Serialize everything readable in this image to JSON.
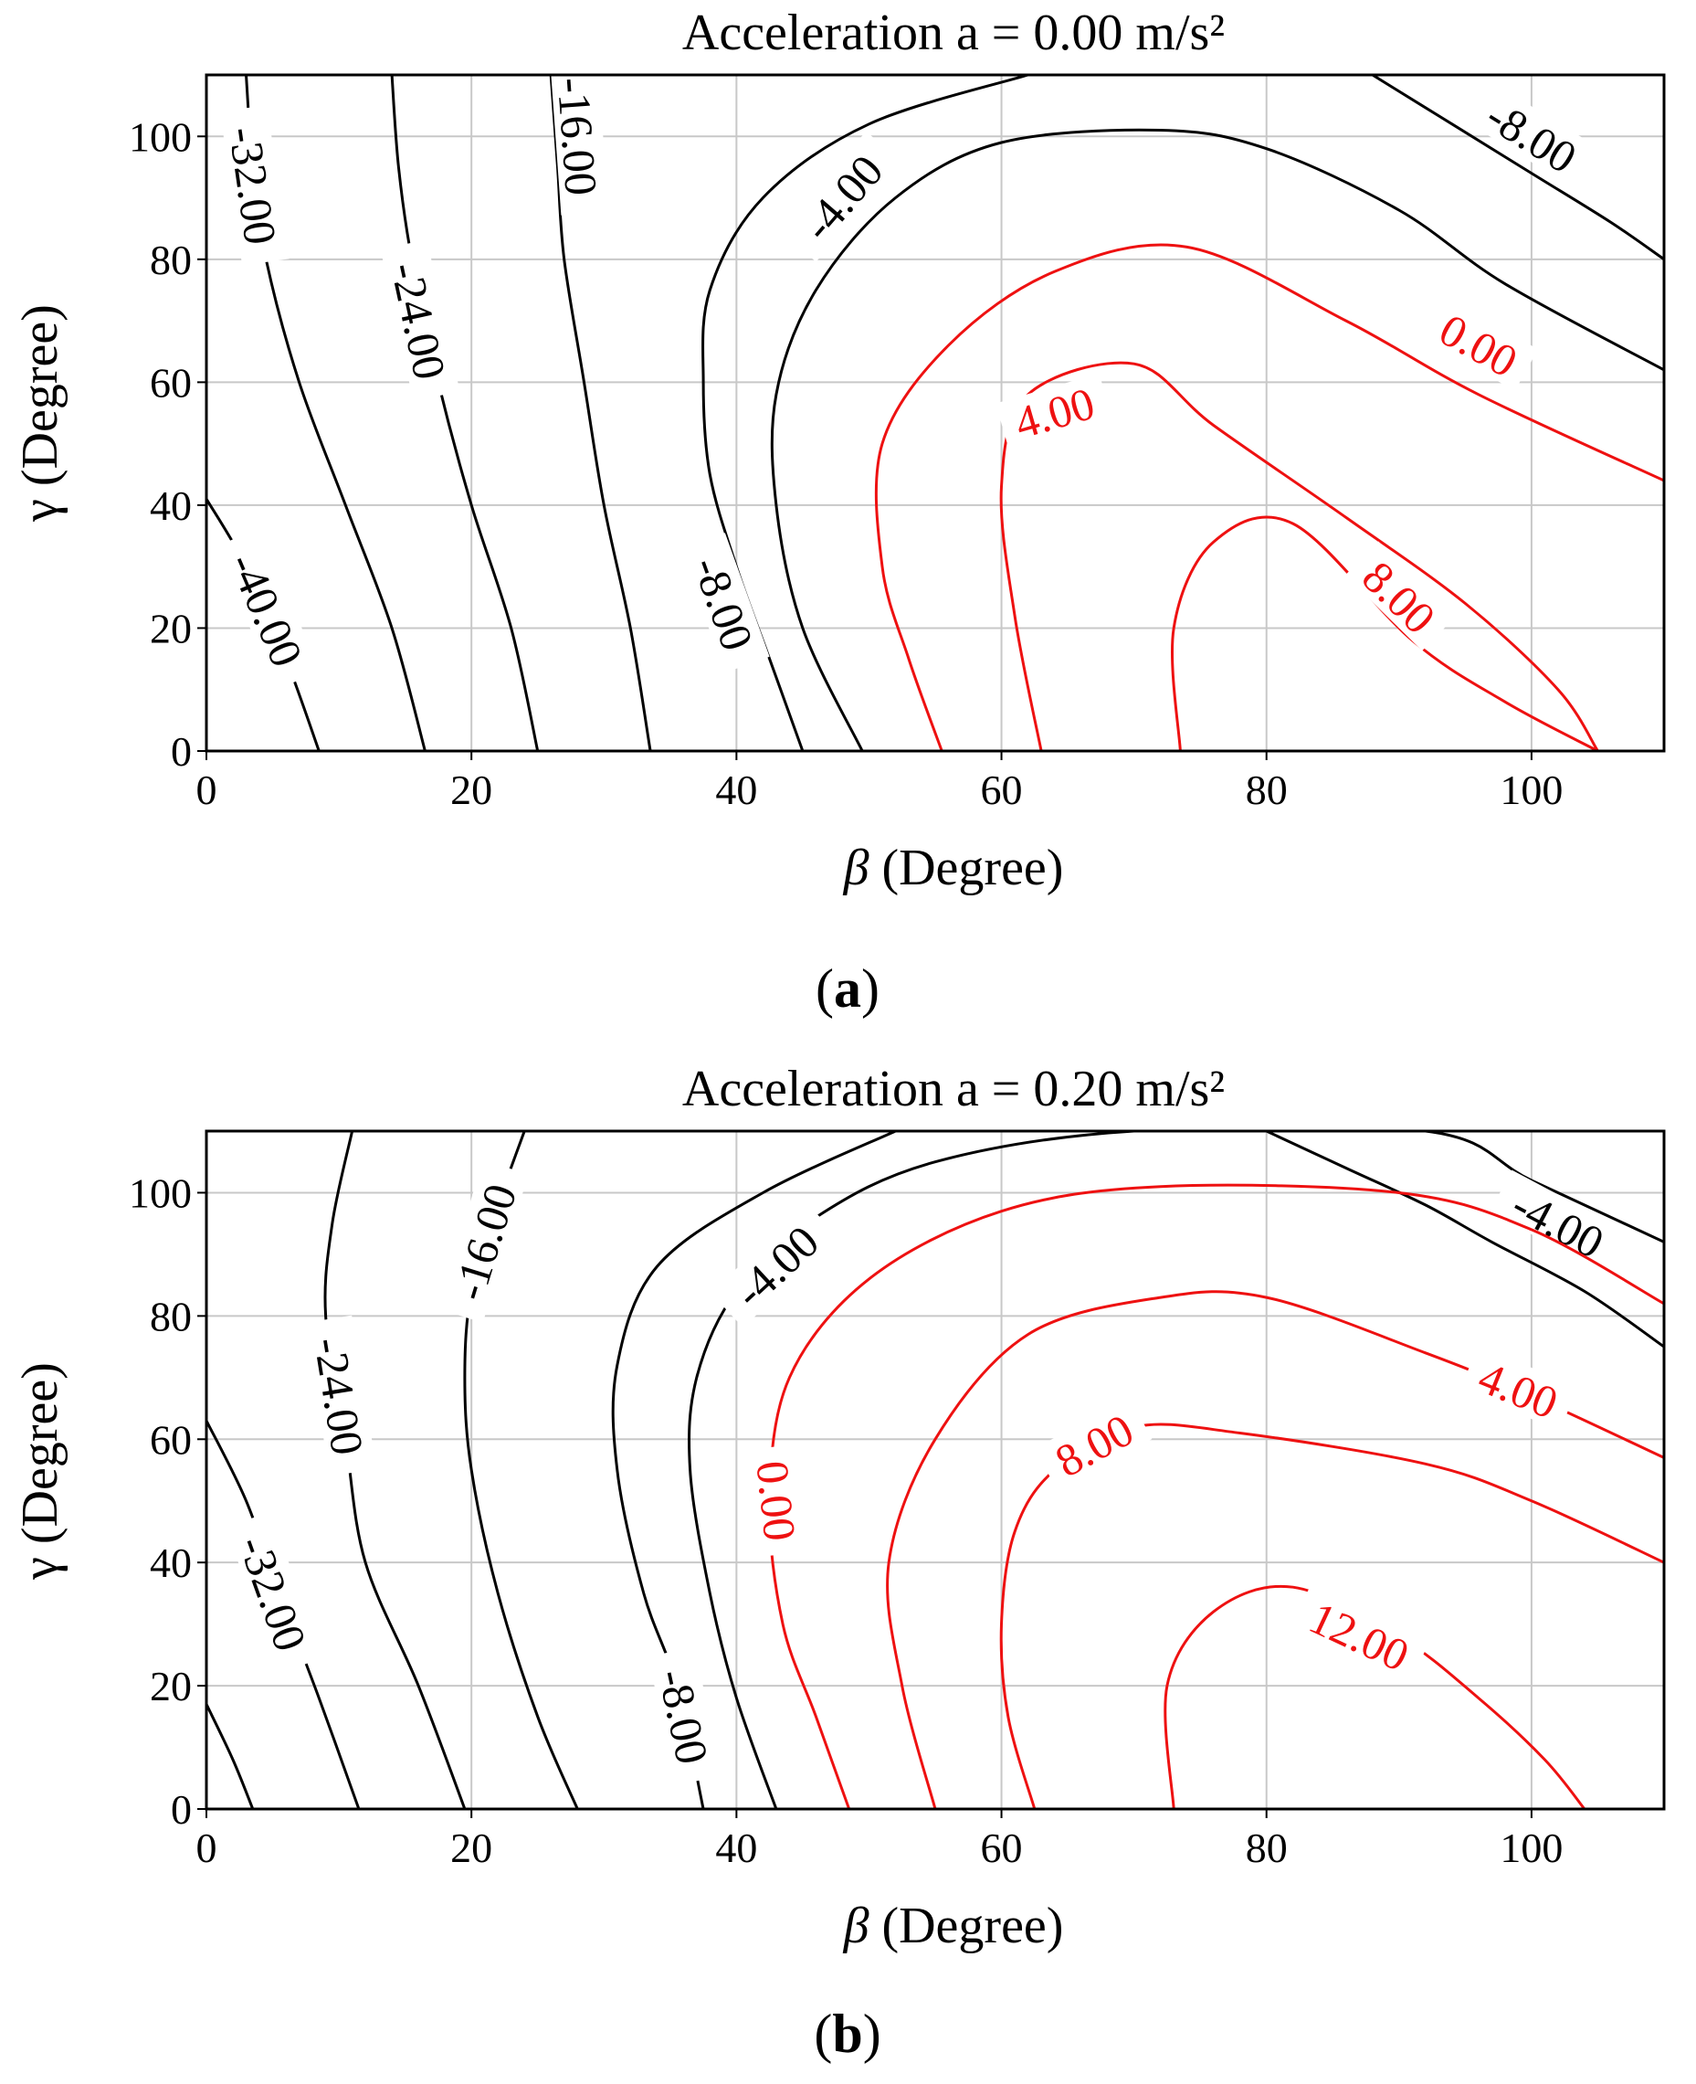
{
  "chart_data": [
    {
      "type": "contour",
      "panel": "(a)",
      "panel_letter": "a",
      "title": "Acceleration a = 0.00 m/s²",
      "xlabel": "β (Degree)",
      "xlabel_symbol": "β",
      "xlabel_unit": "(Degree)",
      "ylabel": "γ (Degree)",
      "ylabel_symbol": "γ",
      "ylabel_unit": "(Degree)",
      "xlim": [
        0,
        110
      ],
      "ylim": [
        0,
        110
      ],
      "xticks": [
        0,
        20,
        40,
        60,
        80,
        100
      ],
      "yticks": [
        0,
        20,
        40,
        60,
        80,
        100
      ],
      "grid": true,
      "positive_color": "#ee1111",
      "negative_color": "#000000",
      "levels": [
        {
          "label": "-40.00",
          "sign": "negative",
          "points": [
            [
              0,
              41
            ],
            [
              3,
              30
            ],
            [
              6,
              15
            ],
            [
              8.5,
              0
            ]
          ],
          "label_at": [
            4.5,
            23
          ]
        },
        {
          "label": "-32.00",
          "sign": "negative",
          "points": [
            [
              3,
              110
            ],
            [
              3.5,
              95
            ],
            [
              4.5,
              80
            ],
            [
              7,
              60
            ],
            [
              10.5,
              40
            ],
            [
              14,
              20
            ],
            [
              16.5,
              0
            ]
          ],
          "label_at": [
            3.5,
            92
          ]
        },
        {
          "label": "-24.00",
          "sign": "negative",
          "points": [
            [
              14,
              110
            ],
            [
              14.5,
              95
            ],
            [
              15.5,
              80
            ],
            [
              17.5,
              60
            ],
            [
              20,
              40
            ],
            [
              23,
              20
            ],
            [
              25,
              0
            ]
          ],
          "label_at": [
            16,
            70
          ]
        },
        {
          "label": "-16.00",
          "sign": "negative",
          "points": [
            [
              26,
              110
            ],
            [
              26.5,
              95
            ],
            [
              27,
              80
            ],
            [
              28.5,
              60
            ],
            [
              30,
              40
            ],
            [
              32,
              20
            ],
            [
              33.5,
              0
            ]
          ],
          "label_at": [
            28,
            100
          ]
        },
        {
          "label": "-8.00",
          "sign": "negative",
          "points": [
            [
              62,
              110
            ],
            [
              50,
              102
            ],
            [
              42,
              90
            ],
            [
              38,
              75
            ],
            [
              37.5,
              60
            ],
            [
              38,
              45
            ],
            [
              40,
              30
            ],
            [
              42.5,
              15
            ],
            [
              45,
              0
            ]
          ],
          "label_at": [
            39,
            24
          ]
        },
        {
          "label": "-4.00",
          "sign": "negative",
          "points": [
            [
              110,
              62
            ],
            [
              98,
              76
            ],
            [
              90,
              88
            ],
            [
              80,
              98
            ],
            [
              72,
              101
            ],
            [
              60,
              99
            ],
            [
              52,
              90
            ],
            [
              46,
              75
            ],
            [
              43,
              58
            ],
            [
              43,
              40
            ],
            [
              45,
              20
            ],
            [
              49.5,
              0
            ]
          ],
          "label_at": [
            48,
            90
          ]
        },
        {
          "label": "-8.00",
          "sign": "negative",
          "points": [
            [
              110,
              80
            ],
            [
              106,
              86
            ],
            [
              100,
              94
            ],
            [
              94,
              102
            ],
            [
              88,
              110
            ]
          ],
          "label_at": [
            100,
            100
          ]
        },
        {
          "label": "0.00",
          "sign": "positive",
          "points": [
            [
              110,
              44
            ],
            [
              96,
              58
            ],
            [
              86,
              70
            ],
            [
              74,
              82
            ],
            [
              64,
              78
            ],
            [
              56,
              66
            ],
            [
              51,
              50
            ],
            [
              51,
              30
            ],
            [
              53,
              15
            ],
            [
              55.5,
              0
            ]
          ],
          "label_at": [
            96,
            66
          ]
        },
        {
          "label": "4.00",
          "sign": "positive",
          "points": [
            [
              105,
              0
            ],
            [
              102,
              10
            ],
            [
              95,
              24
            ],
            [
              86,
              38
            ],
            [
              76,
              53
            ],
            [
              70,
              63
            ],
            [
              62,
              58
            ],
            [
              60,
              43
            ],
            [
              61,
              22
            ],
            [
              63,
              0
            ]
          ],
          "label_at": [
            64,
            55
          ]
        },
        {
          "label": "8.00",
          "sign": "positive",
          "points": [
            [
              105,
              0
            ],
            [
              98,
              8
            ],
            [
              91,
              18
            ],
            [
              82,
              37
            ],
            [
              76,
              34
            ],
            [
              73,
              20
            ],
            [
              73.5,
              0
            ]
          ],
          "label_at": [
            90,
            25
          ]
        }
      ]
    },
    {
      "type": "contour",
      "panel": "(b)",
      "panel_letter": "b",
      "title": "Acceleration a = 0.20 m/s²",
      "xlabel": "β (Degree)",
      "xlabel_symbol": "β",
      "xlabel_unit": "(Degree)",
      "ylabel": "γ (Degree)",
      "ylabel_symbol": "γ",
      "ylabel_unit": "(Degree)",
      "xlim": [
        0,
        110
      ],
      "ylim": [
        0,
        110
      ],
      "xticks": [
        0,
        20,
        40,
        60,
        80,
        100
      ],
      "yticks": [
        0,
        20,
        40,
        60,
        80,
        100
      ],
      "grid": true,
      "positive_color": "#ee1111",
      "negative_color": "#000000",
      "levels": [
        {
          "label": "",
          "sign": "negative",
          "points": [
            [
              0,
              17
            ],
            [
              2,
              8
            ],
            [
              3.5,
              0
            ]
          ],
          "label_at": null
        },
        {
          "label": "-32.00",
          "sign": "negative",
          "points": [
            [
              0,
              63
            ],
            [
              3,
              50
            ],
            [
              5.5,
              35
            ],
            [
              8.5,
              18
            ],
            [
              11.5,
              0
            ]
          ],
          "label_at": [
            5,
            35
          ]
        },
        {
          "label": "-24.00",
          "sign": "negative",
          "points": [
            [
              11,
              110
            ],
            [
              9.5,
              95
            ],
            [
              9,
              80
            ],
            [
              10.5,
              60
            ],
            [
              12,
              40
            ],
            [
              16,
              20
            ],
            [
              19.5,
              0
            ]
          ],
          "label_at": [
            10,
            67
          ]
        },
        {
          "label": "-16.00",
          "sign": "negative",
          "points": [
            [
              24,
              110
            ],
            [
              22,
              98
            ],
            [
              20,
              84
            ],
            [
              19.5,
              70
            ],
            [
              20,
              55
            ],
            [
              22,
              35
            ],
            [
              25,
              15
            ],
            [
              28,
              0
            ]
          ],
          "label_at": [
            21,
            92
          ]
        },
        {
          "label": "-8.00",
          "sign": "negative",
          "points": [
            [
              52,
              110
            ],
            [
              42,
              100
            ],
            [
              34,
              88
            ],
            [
              31,
              72
            ],
            [
              31,
              55
            ],
            [
              33,
              35
            ],
            [
              35.5,
              20
            ],
            [
              37.5,
              0
            ]
          ],
          "label_at": [
            36,
            15
          ]
        },
        {
          "label": "-4.00",
          "sign": "negative",
          "points": [
            [
              110,
              92
            ],
            [
              100,
              102
            ],
            [
              92,
              110
            ],
            [
              70,
              110
            ],
            [
              55,
              105
            ],
            [
              46,
              96
            ],
            [
              40,
              84
            ],
            [
              37,
              70
            ],
            [
              36.5,
              55
            ],
            [
              38,
              35
            ],
            [
              40,
              18
            ],
            [
              43,
              0
            ]
          ],
          "label_at": [
            43,
            88
          ]
        },
        {
          "label": "-4.00",
          "sign": "negative",
          "points": [
            [
              110,
              75
            ],
            [
              104,
              84
            ],
            [
              97,
              92
            ],
            [
              92,
              98
            ],
            [
              86,
              104
            ],
            [
              80,
              110
            ]
          ],
          "label_at": [
            102,
            95
          ]
        },
        {
          "label": "0.00",
          "sign": "positive",
          "points": [
            [
              110,
              82
            ],
            [
              100,
              94
            ],
            [
              90,
              100
            ],
            [
              72,
              101
            ],
            [
              60,
              97
            ],
            [
              50,
              86
            ],
            [
              44,
              70
            ],
            [
              42.5,
              50
            ],
            [
              43.5,
              30
            ],
            [
              46,
              15
            ],
            [
              48.5,
              0
            ]
          ],
          "label_at": [
            43,
            50
          ]
        },
        {
          "label": "4.00",
          "sign": "positive",
          "points": [
            [
              110,
              57
            ],
            [
              100,
              67
            ],
            [
              92,
              74
            ],
            [
              80,
              83
            ],
            [
              72,
              83
            ],
            [
              62,
              77
            ],
            [
              55,
              60
            ],
            [
              51.5,
              40
            ],
            [
              52.5,
              20
            ],
            [
              55,
              0
            ]
          ],
          "label_at": [
            99,
            68
          ]
        },
        {
          "label": "8.00",
          "sign": "positive",
          "points": [
            [
              110,
              40
            ],
            [
              100,
              50
            ],
            [
              92,
              56
            ],
            [
              78,
              61
            ],
            [
              70,
              62
            ],
            [
              64,
              55
            ],
            [
              61,
              45
            ],
            [
              60,
              30
            ],
            [
              60.5,
              15
            ],
            [
              62.5,
              0
            ]
          ],
          "label_at": [
            67,
            59
          ]
        },
        {
          "label": "12.00",
          "sign": "positive",
          "points": [
            [
              104,
              0
            ],
            [
              101,
              8
            ],
            [
              96,
              18
            ],
            [
              90,
              28
            ],
            [
              82,
              36
            ],
            [
              76,
              32
            ],
            [
              72.5,
              20
            ],
            [
              73,
              0
            ]
          ],
          "label_at": [
            87,
            28
          ]
        }
      ]
    }
  ]
}
